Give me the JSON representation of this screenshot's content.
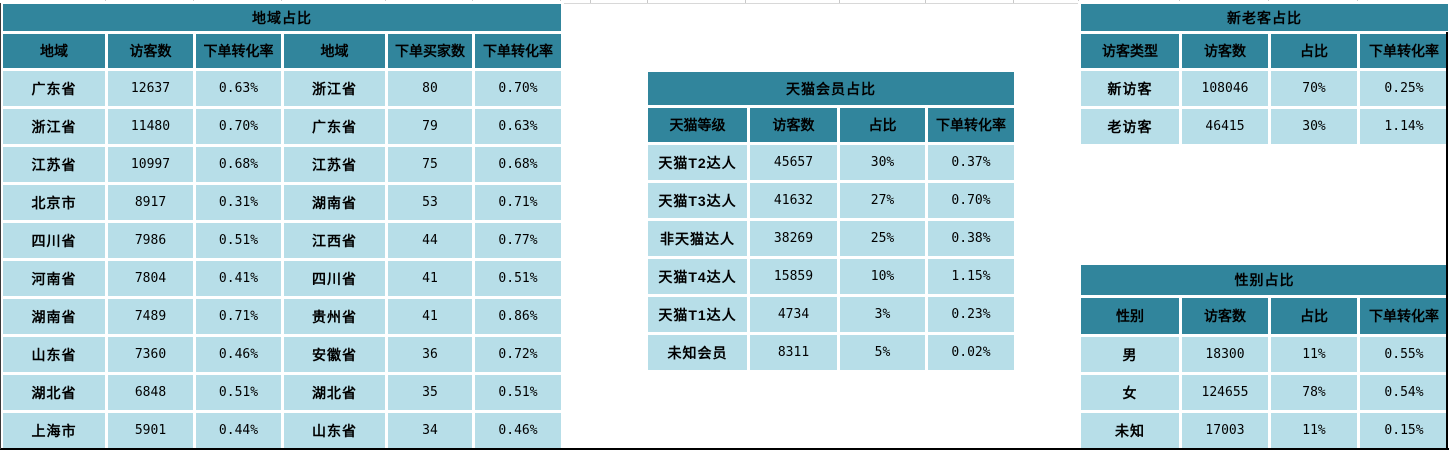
{
  "colors": {
    "header_teal": "#31859C",
    "cell_blue": "#B7DEE8",
    "grid_line": "#d8d8d8",
    "sheet_border": "#000000"
  },
  "tables": {
    "region": {
      "title": "地域占比",
      "headers": [
        "地域",
        "访客数",
        "下单转化率",
        "地域",
        "下单买家数",
        "下单转化率"
      ],
      "rows": [
        [
          "广东省",
          "12637",
          "0.63%",
          "浙江省",
          "80",
          "0.70%"
        ],
        [
          "浙江省",
          "11480",
          "0.70%",
          "广东省",
          "79",
          "0.63%"
        ],
        [
          "江苏省",
          "10997",
          "0.68%",
          "江苏省",
          "75",
          "0.68%"
        ],
        [
          "北京市",
          "8917",
          "0.31%",
          "湖南省",
          "53",
          "0.71%"
        ],
        [
          "四川省",
          "7986",
          "0.51%",
          "江西省",
          "44",
          "0.77%"
        ],
        [
          "河南省",
          "7804",
          "0.41%",
          "四川省",
          "41",
          "0.51%"
        ],
        [
          "湖南省",
          "7489",
          "0.71%",
          "贵州省",
          "41",
          "0.86%"
        ],
        [
          "山东省",
          "7360",
          "0.46%",
          "安徽省",
          "36",
          "0.72%"
        ],
        [
          "湖北省",
          "6848",
          "0.51%",
          "湖北省",
          "35",
          "0.51%"
        ],
        [
          "上海市",
          "5901",
          "0.44%",
          "山东省",
          "34",
          "0.46%"
        ]
      ]
    },
    "tmall": {
      "title": "天猫会员占比",
      "headers": [
        "天猫等级",
        "访客数",
        "占比",
        "下单转化率"
      ],
      "rows": [
        [
          "天猫T2达人",
          "45657",
          "30%",
          "0.37%"
        ],
        [
          "天猫T3达人",
          "41632",
          "27%",
          "0.70%"
        ],
        [
          "非天猫达人",
          "38269",
          "25%",
          "0.38%"
        ],
        [
          "天猫T4达人",
          "15859",
          "10%",
          "1.15%"
        ],
        [
          "天猫T1达人",
          "4734",
          "3%",
          "0.23%"
        ],
        [
          "未知会员",
          "8311",
          "5%",
          "0.02%"
        ]
      ]
    },
    "new_old": {
      "title": "新老客占比",
      "headers": [
        "访客类型",
        "访客数",
        "占比",
        "下单转化率"
      ],
      "rows": [
        [
          "新访客",
          "108046",
          "70%",
          "0.25%"
        ],
        [
          "老访客",
          "46415",
          "30%",
          "1.14%"
        ]
      ]
    },
    "gender": {
      "title": "性别占比",
      "headers": [
        "性别",
        "访客数",
        "占比",
        "下单转化率"
      ],
      "rows": [
        [
          "男",
          "18300",
          "11%",
          "0.55%"
        ],
        [
          "女",
          "124655",
          "78%",
          "0.54%"
        ],
        [
          "未知",
          "17003",
          "11%",
          "0.15%"
        ]
      ]
    }
  }
}
